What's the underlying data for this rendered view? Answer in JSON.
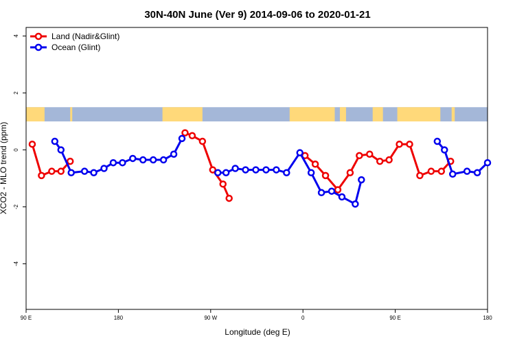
{
  "chart_data": {
    "type": "line",
    "title": "30N-40N June (Ver 9)   2014-09-06 to 2020-01-21",
    "xlabel": "Longitude (deg E)",
    "ylabel": "XCO2 - MLO trend (ppm)",
    "xlim": [
      90,
      540
    ],
    "ylim": [
      -5.6,
      4.3
    ],
    "x_ticks": [
      {
        "value": 90,
        "label": "90 E"
      },
      {
        "value": 180,
        "label": "180"
      },
      {
        "value": 270,
        "label": "90 W"
      },
      {
        "value": 360,
        "label": "0"
      },
      {
        "value": 450,
        "label": "90 E"
      },
      {
        "value": 540,
        "label": "180"
      }
    ],
    "y_ticks": [
      {
        "value": 4,
        "label": "4"
      },
      {
        "value": 2,
        "label": "2"
      },
      {
        "value": 0,
        "label": "0"
      },
      {
        "value": -2,
        "label": "-2"
      },
      {
        "value": -4,
        "label": "-4"
      }
    ],
    "grid": false,
    "legend_position": "top-left",
    "land_mask_band": {
      "y_range": [
        1.0,
        1.5
      ],
      "land_color": "#ffd97a",
      "ocean_color": "#a4b7d8"
    },
    "series": [
      {
        "name": "Land (Nadir&Glint)",
        "color": "#ee0000",
        "segments": [
          [
            [
              96,
              0.2
            ],
            [
              105,
              -0.9
            ],
            [
              115,
              -0.75
            ],
            [
              124,
              -0.75
            ],
            [
              133,
              -0.4
            ]
          ],
          [
            [
              245,
              0.6
            ],
            [
              252,
              0.5
            ],
            [
              262,
              0.3
            ],
            [
              272,
              -0.7
            ],
            [
              282,
              -1.2
            ],
            [
              288,
              -1.7
            ]
          ],
          [
            [
              362,
              -0.2
            ],
            [
              372,
              -0.5
            ],
            [
              382,
              -0.9
            ],
            [
              394,
              -1.4
            ],
            [
              406,
              -0.8
            ],
            [
              415,
              -0.2
            ],
            [
              425,
              -0.15
            ],
            [
              435,
              -0.4
            ],
            [
              444,
              -0.35
            ],
            [
              454,
              0.2
            ],
            [
              464,
              0.2
            ],
            [
              474,
              -0.9
            ],
            [
              485,
              -0.75
            ],
            [
              495,
              -0.75
            ],
            [
              504,
              -0.4
            ]
          ]
        ]
      },
      {
        "name": "Ocean (Glint)",
        "color": "#0000ee",
        "segments": [
          [
            [
              118,
              0.3
            ],
            [
              124,
              0
            ],
            [
              134,
              -0.8
            ],
            [
              147,
              -0.75
            ],
            [
              156,
              -0.8
            ],
            [
              166,
              -0.65
            ],
            [
              175,
              -0.45
            ],
            [
              184,
              -0.45
            ],
            [
              194,
              -0.3
            ],
            [
              204,
              -0.35
            ],
            [
              214,
              -0.35
            ],
            [
              224,
              -0.35
            ],
            [
              234,
              -0.15
            ],
            [
              242,
              0.4
            ]
          ],
          [
            [
              277,
              -0.8
            ],
            [
              285,
              -0.8
            ],
            [
              294,
              -0.65
            ],
            [
              304,
              -0.7
            ],
            [
              314,
              -0.7
            ],
            [
              324,
              -0.7
            ],
            [
              334,
              -0.7
            ],
            [
              344,
              -0.8
            ],
            [
              357,
              -0.1
            ],
            [
              368,
              -0.8
            ],
            [
              378,
              -1.5
            ],
            [
              388,
              -1.45
            ],
            [
              398,
              -1.65
            ],
            [
              411,
              -1.9
            ],
            [
              417,
              -1.05
            ]
          ],
          [
            [
              491,
              0.3
            ],
            [
              498,
              0
            ],
            [
              506,
              -0.85
            ],
            [
              520,
              -0.75
            ],
            [
              530,
              -0.8
            ],
            [
              540,
              -0.45
            ]
          ]
        ]
      }
    ]
  }
}
